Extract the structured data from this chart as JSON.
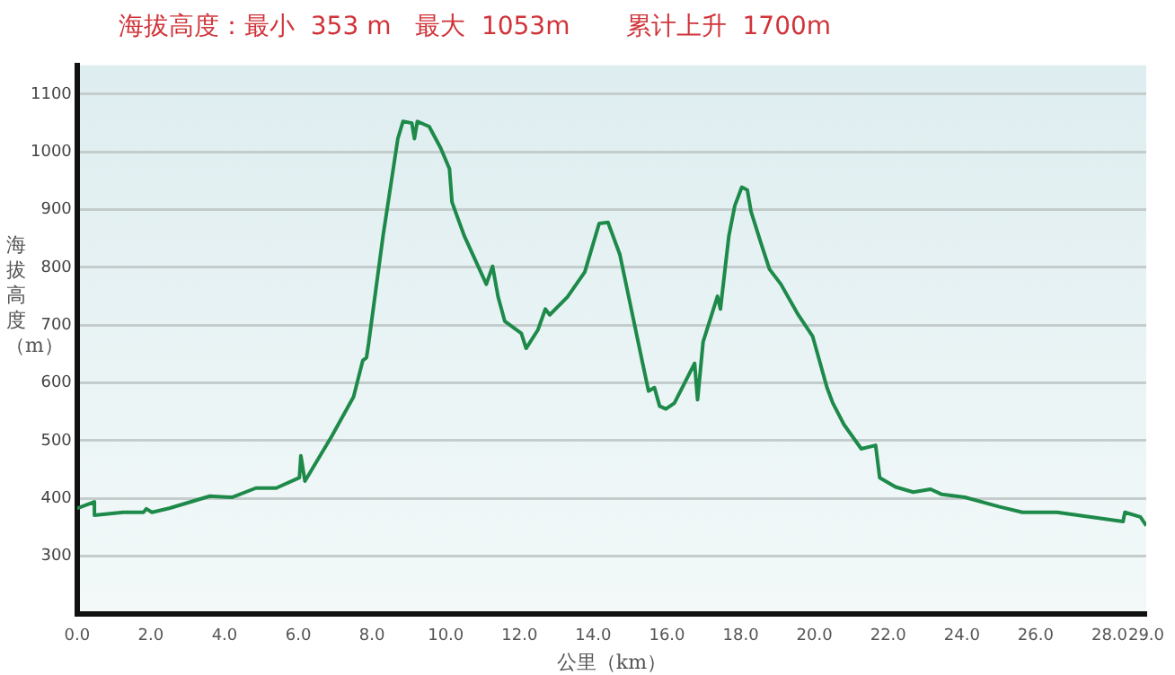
{
  "chart_data": {
    "type": "line",
    "title": "海拔高度：最小  353 m   最大  1053m       累计上升  1700m",
    "xlabel": "公里（km）",
    "ylabel": "海拔高度（m）",
    "x": [
      0,
      0.47,
      0.47,
      1.25,
      1.8,
      1.88,
      2.03,
      2.5,
      3.6,
      4.2,
      4.85,
      5.4,
      6.03,
      6.07,
      6.18,
      6.9,
      7.5,
      7.75,
      7.85,
      7.9,
      8.3,
      8.7,
      8.84,
      9.08,
      9.15,
      9.23,
      9.55,
      9.86,
      10.1,
      10.17,
      10.5,
      10.95,
      11.1,
      11.27,
      11.42,
      11.6,
      12.05,
      12.18,
      12.5,
      12.7,
      12.82,
      13.3,
      13.77,
      14.16,
      14.4,
      14.72,
      15.34,
      15.5,
      15.66,
      15.8,
      15.97,
      16.2,
      16.75,
      16.83,
      16.98,
      17.37,
      17.45,
      17.68,
      17.84,
      18.03,
      18.18,
      18.28,
      18.54,
      18.78,
      19.09,
      19.56,
      19.95,
      20.34,
      20.5,
      20.8,
      21.27,
      21.66,
      21.77,
      22.2,
      22.68,
      23.15,
      23.46,
      24.08,
      25,
      25.64,
      26.58,
      28.37,
      28.42,
      28.84,
      29
    ],
    "series": [
      {
        "color": "#1e8a4a",
        "values": [
          383,
          394,
          371,
          376,
          376,
          382,
          376,
          383,
          404,
          402,
          418,
          418,
          436,
          474,
          430,
          507,
          576,
          639,
          644,
          665,
          855,
          1023,
          1053,
          1050,
          1023,
          1053,
          1044,
          1007,
          971,
          913,
          855,
          792,
          771,
          802,
          749,
          707,
          686,
          660,
          692,
          728,
          718,
          749,
          792,
          876,
          878,
          823,
          634,
          586,
          592,
          560,
          555,
          565,
          634,
          571,
          671,
          750,
          728,
          855,
          907,
          939,
          934,
          897,
          844,
          797,
          771,
          718,
          681,
          592,
          565,
          528,
          486,
          492,
          436,
          420,
          411,
          416,
          407,
          402,
          386,
          376,
          376,
          360,
          376,
          368,
          353
        ]
      }
    ],
    "xlim": [
      0,
      29
    ],
    "ylim": [
      200,
      1150
    ],
    "xticks": [
      {
        "value": 0,
        "label": "0.0"
      },
      {
        "value": 2,
        "label": "2.0"
      },
      {
        "value": 4,
        "label": "4.0"
      },
      {
        "value": 6,
        "label": "6.0"
      },
      {
        "value": 8,
        "label": "8.0"
      },
      {
        "value": 10,
        "label": "10.0"
      },
      {
        "value": 12,
        "label": "12.0"
      },
      {
        "value": 14,
        "label": "14.0"
      },
      {
        "value": 16,
        "label": "16.0"
      },
      {
        "value": 18,
        "label": "18.0"
      },
      {
        "value": 20,
        "label": "20.0"
      },
      {
        "value": 22,
        "label": "22.0"
      },
      {
        "value": 24,
        "label": "24.0"
      },
      {
        "value": 26,
        "label": "26.0"
      },
      {
        "value": 28,
        "label": "28.0"
      },
      {
        "value": 29,
        "label": "29.0"
      }
    ],
    "yticks": [
      300,
      400,
      500,
      600,
      700,
      800,
      900,
      1000,
      1100
    ],
    "grid": "y",
    "legend": false,
    "marker": "none",
    "line_style": "solid"
  }
}
